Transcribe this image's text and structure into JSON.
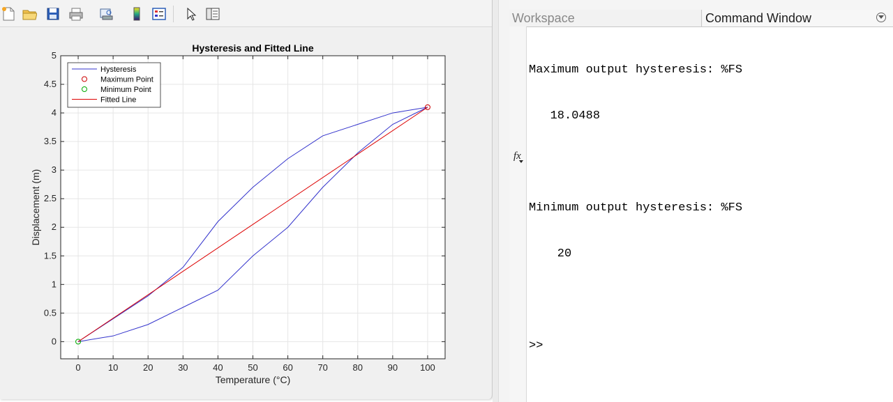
{
  "figure": {
    "toolbar_icons": [
      "new-file-icon",
      "open-folder-icon",
      "save-icon",
      "print-icon",
      "print-preview-icon",
      "colorbar-icon",
      "legend-icon",
      "pointer-icon",
      "property-editor-icon"
    ]
  },
  "chart_data": {
    "type": "line",
    "title": "Hysteresis and Fitted Line",
    "xlabel": "Temperature (°C)",
    "ylabel": "Displacement (m)",
    "xlim": [
      -5,
      105
    ],
    "ylim": [
      -0.3,
      5
    ],
    "xticks": [
      0,
      10,
      20,
      30,
      40,
      50,
      60,
      70,
      80,
      90,
      100
    ],
    "yticks": [
      0,
      0.5,
      1,
      1.5,
      2,
      2.5,
      3,
      3.5,
      4,
      4.5,
      5
    ],
    "xtick_labels": [
      "0",
      "10",
      "20",
      "30",
      "40",
      "50",
      "60",
      "70",
      "80",
      "90",
      "100"
    ],
    "ytick_labels": [
      "0",
      "0.5",
      "1",
      "1.5",
      "2",
      "2.5",
      "3",
      "3.5",
      "4",
      "4.5",
      "5"
    ],
    "grid": true,
    "legend_position": "top-left",
    "series": [
      {
        "name": "Hysteresis",
        "kind": "line",
        "color": "#3333cc",
        "x": [
          0,
          10,
          20,
          30,
          40,
          50,
          60,
          70,
          80,
          90,
          100,
          90,
          80,
          70,
          60,
          50,
          40,
          30,
          20,
          10,
          0
        ],
        "y": [
          0,
          0.1,
          0.3,
          0.6,
          0.9,
          1.5,
          2.0,
          2.7,
          3.3,
          3.8,
          4.1,
          4.0,
          3.8,
          3.6,
          3.2,
          2.7,
          2.1,
          1.3,
          0.8,
          0.4,
          0
        ]
      },
      {
        "name": "Maximum Point",
        "kind": "marker",
        "color": "#cc0000",
        "x": [
          100
        ],
        "y": [
          4.1
        ]
      },
      {
        "name": "Minimum Point",
        "kind": "marker",
        "color": "#00aa00",
        "x": [
          0
        ],
        "y": [
          0
        ]
      },
      {
        "name": "Fitted Line",
        "kind": "line",
        "color": "#dd0000",
        "x": [
          0,
          100
        ],
        "y": [
          0,
          4.1
        ]
      }
    ]
  },
  "workspace": {
    "tab_workspace": "Workspace",
    "tab_command": "Command Window"
  },
  "command_window": {
    "lines": [
      "Maximum output hysteresis: %FS",
      "   18.0488",
      "",
      "Minimum output hysteresis: %FS",
      "    20",
      "",
      ">>"
    ],
    "fx_label": "fx"
  }
}
